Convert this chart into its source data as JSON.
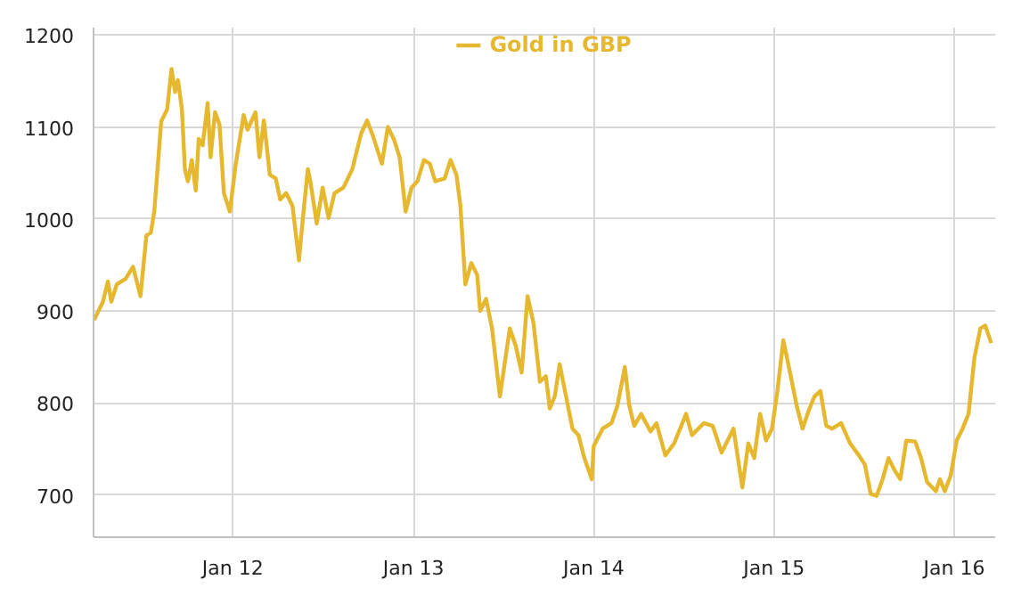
{
  "chart_data": {
    "type": "line",
    "legend": "top",
    "grid": true,
    "marker": "none",
    "line_style": "solid",
    "xlim": [
      "2011-03-25",
      "2016-03-24"
    ],
    "ylim": [
      654,
      1208
    ],
    "yticks": [
      700,
      800,
      900,
      1000,
      1100,
      1200
    ],
    "xticks": [
      {
        "value": "2012-01-01",
        "label": "Jan 12"
      },
      {
        "value": "2013-01-01",
        "label": "Jan 13"
      },
      {
        "value": "2014-01-01",
        "label": "Jan 14"
      },
      {
        "value": "2015-01-01",
        "label": "Jan 15"
      },
      {
        "value": "2016-01-01",
        "label": "Jan 16"
      }
    ],
    "x": [
      "2011-03-26",
      "2011-04-13",
      "2011-04-23",
      "2011-04-30",
      "2011-05-11",
      "2011-05-29",
      "2011-06-13",
      "2011-06-28",
      "2011-07-10",
      "2011-07-19",
      "2011-07-26",
      "2011-08-09",
      "2011-08-21",
      "2011-08-30",
      "2011-09-06",
      "2011-09-12",
      "2011-09-20",
      "2011-09-26",
      "2011-10-02",
      "2011-10-10",
      "2011-10-18",
      "2011-10-24",
      "2011-11-01",
      "2011-11-11",
      "2011-11-17",
      "2011-11-26",
      "2011-12-05",
      "2011-12-14",
      "2011-12-26",
      "2012-01-07",
      "2012-01-23",
      "2012-01-31",
      "2012-02-16",
      "2012-02-24",
      "2012-03-04",
      "2012-03-16",
      "2012-03-28",
      "2012-04-06",
      "2012-04-18",
      "2012-05-01",
      "2012-05-14",
      "2012-05-22",
      "2012-06-01",
      "2012-06-06",
      "2012-06-19",
      "2012-07-01",
      "2012-07-13",
      "2012-07-25",
      "2012-08-12",
      "2012-08-30",
      "2012-09-17",
      "2012-09-29",
      "2012-10-11",
      "2012-10-29",
      "2012-11-10",
      "2012-11-22",
      "2012-12-04",
      "2012-12-16",
      "2012-12-28",
      "2013-01-09",
      "2013-01-22",
      "2013-02-03",
      "2013-02-14",
      "2013-03-05",
      "2013-03-17",
      "2013-03-29",
      "2013-04-06",
      "2013-04-16",
      "2013-04-28",
      "2013-05-10",
      "2013-05-16",
      "2013-05-28",
      "2013-06-09",
      "2013-06-25",
      "2013-07-15",
      "2013-07-27",
      "2013-08-08",
      "2013-08-20",
      "2013-09-01",
      "2013-09-14",
      "2013-09-26",
      "2013-10-04",
      "2013-10-14",
      "2013-10-24",
      "2013-11-07",
      "2013-11-19",
      "2013-12-01",
      "2013-12-13",
      "2013-12-28",
      "2014-01-01",
      "2014-01-19",
      "2014-02-06",
      "2014-02-18",
      "2014-03-05",
      "2014-03-14",
      "2014-03-24",
      "2014-04-07",
      "2014-04-26",
      "2014-05-08",
      "2014-05-26",
      "2014-06-13",
      "2014-06-25",
      "2014-07-07",
      "2014-07-19",
      "2014-08-12",
      "2014-08-30",
      "2014-09-17",
      "2014-10-11",
      "2014-10-29",
      "2014-11-10",
      "2014-11-22",
      "2014-12-04",
      "2014-12-16",
      "2014-12-28",
      "2015-01-08",
      "2015-01-20",
      "2015-02-04",
      "2015-02-16",
      "2015-02-28",
      "2015-03-12",
      "2015-03-24",
      "2015-04-05",
      "2015-04-17",
      "2015-04-29",
      "2015-05-17",
      "2015-06-04",
      "2015-06-22",
      "2015-07-04",
      "2015-07-16",
      "2015-07-28",
      "2015-08-09",
      "2015-08-21",
      "2015-09-02",
      "2015-09-14",
      "2015-09-26",
      "2015-10-14",
      "2015-10-26",
      "2015-11-07",
      "2015-11-25",
      "2015-12-03",
      "2015-12-13",
      "2015-12-25",
      "2016-01-06",
      "2016-01-18",
      "2016-01-30",
      "2016-02-11",
      "2016-02-23",
      "2016-03-04",
      "2016-03-16"
    ],
    "series": [
      {
        "name": "Gold in GBP",
        "color": "#e6b830",
        "values": [
          890,
          910,
          932,
          910,
          929,
          935,
          948,
          916,
          982,
          985,
          1008,
          1106,
          1119,
          1163,
          1138,
          1151,
          1119,
          1054,
          1041,
          1064,
          1031,
          1087,
          1080,
          1126,
          1067,
          1116,
          1103,
          1028,
          1008,
          1060,
          1113,
          1097,
          1116,
          1067,
          1107,
          1048,
          1044,
          1021,
          1028,
          1014,
          955,
          1001,
          1054,
          1041,
          995,
          1034,
          1001,
          1028,
          1034,
          1054,
          1093,
          1107,
          1090,
          1060,
          1100,
          1087,
          1067,
          1008,
          1034,
          1041,
          1064,
          1060,
          1041,
          1044,
          1064,
          1048,
          1014,
          929,
          952,
          939,
          900,
          913,
          881,
          807,
          881,
          862,
          833,
          916,
          887,
          823,
          829,
          794,
          807,
          842,
          804,
          772,
          765,
          740,
          717,
          753,
          772,
          778,
          797,
          839,
          797,
          775,
          788,
          769,
          778,
          743,
          756,
          772,
          788,
          765,
          778,
          775,
          746,
          772,
          708,
          756,
          740,
          788,
          759,
          772,
          813,
          868,
          829,
          797,
          772,
          791,
          807,
          813,
          775,
          772,
          778,
          756,
          743,
          733,
          701,
          699,
          717,
          740,
          727,
          717,
          759,
          758,
          740,
          714,
          704,
          717,
          704,
          721,
          759,
          772,
          788,
          849,
          881,
          884,
          865
        ]
      }
    ]
  }
}
